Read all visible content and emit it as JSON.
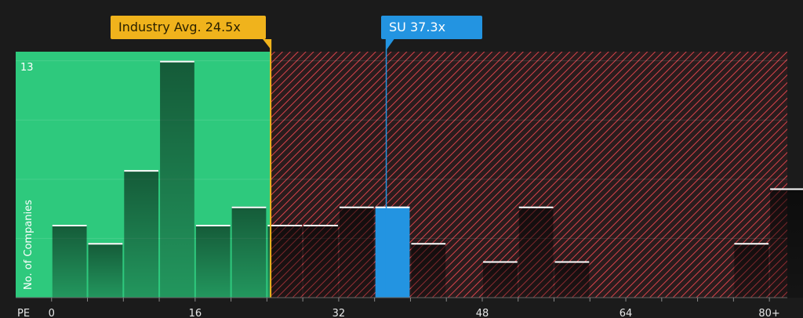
{
  "chart_data": {
    "type": "bar",
    "xlabel": "PE",
    "ylabel": "No. of Companies",
    "xlim": [
      -4,
      82
    ],
    "ylim": [
      0,
      13.5
    ],
    "x_ticks": [
      {
        "value": 0,
        "label": "0"
      },
      {
        "value": 16,
        "label": "16"
      },
      {
        "value": 32,
        "label": "32"
      },
      {
        "value": 48,
        "label": "48"
      },
      {
        "value": 64,
        "label": "64"
      },
      {
        "value": 80,
        "label": "80+"
      }
    ],
    "y_max_label": "13",
    "bin_width": 4,
    "bins": [
      {
        "start": 0,
        "count": 4
      },
      {
        "start": 4,
        "count": 3
      },
      {
        "start": 8,
        "count": 7
      },
      {
        "start": 12,
        "count": 13
      },
      {
        "start": 16,
        "count": 4
      },
      {
        "start": 20,
        "count": 5
      },
      {
        "start": 24,
        "count": 4
      },
      {
        "start": 28,
        "count": 4
      },
      {
        "start": 32,
        "count": 5
      },
      {
        "start": 36,
        "count": 5,
        "highlight": true
      },
      {
        "start": 40,
        "count": 3
      },
      {
        "start": 44,
        "count": 0
      },
      {
        "start": 48,
        "count": 2
      },
      {
        "start": 52,
        "count": 5
      },
      {
        "start": 56,
        "count": 2
      },
      {
        "start": 60,
        "count": 0
      },
      {
        "start": 64,
        "count": 0
      },
      {
        "start": 68,
        "count": 0
      },
      {
        "start": 72,
        "count": 0
      },
      {
        "start": 76,
        "count": 3
      },
      {
        "start": 80,
        "count": 6
      }
    ],
    "industry_avg": {
      "value": 24.5,
      "label": "Industry Avg. 24.5x"
    },
    "company": {
      "value": 37.3,
      "label": "SU 37.3x"
    },
    "grid": true
  },
  "colors": {
    "background": "#1b1b1b",
    "fair_zone": "#2ec97d",
    "expensive_zone": "#e0454d",
    "bar": "#1f3a2e",
    "highlight_bar": "#2394e1",
    "industry_avg": "#f0b31c",
    "company": "#2394e1",
    "axis_text": "#e6e6e6"
  }
}
